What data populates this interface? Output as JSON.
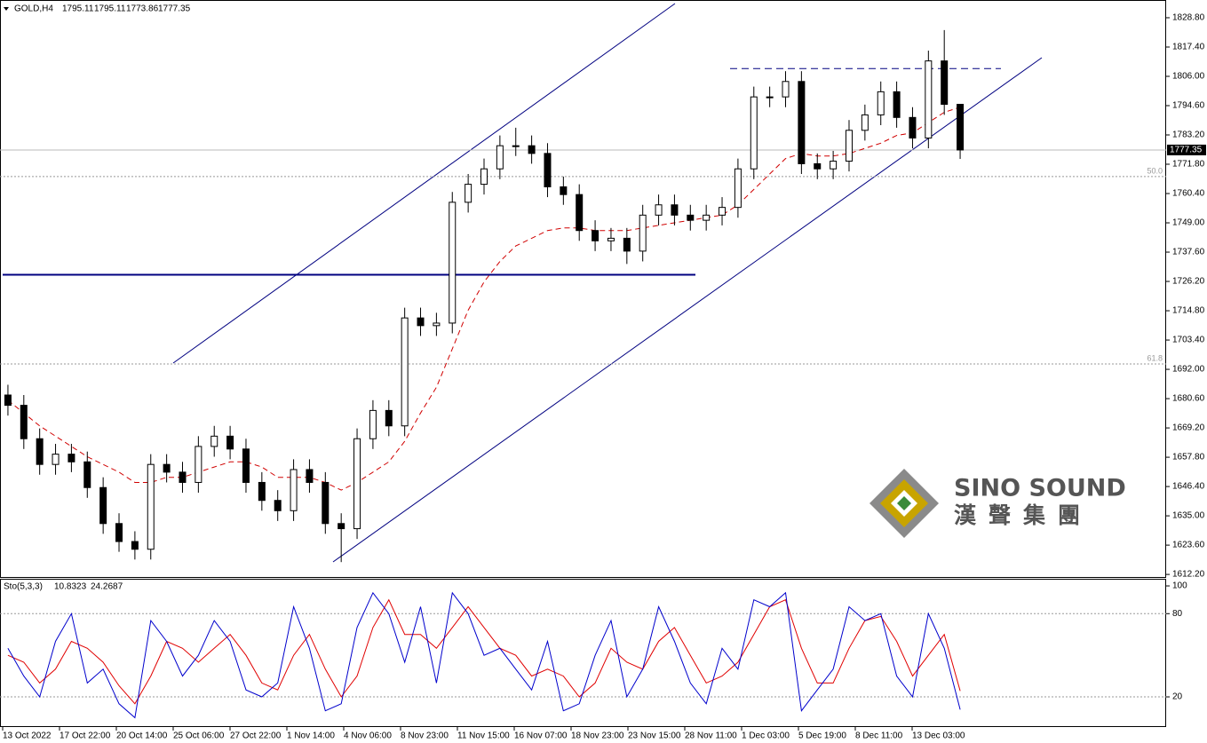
{
  "chart_data": {
    "type": "candlestick",
    "symbol": "GOLD,H4",
    "ohlc_header": [
      1795.11,
      1795.11,
      1773.86,
      1777.35
    ],
    "open": [
      1682,
      1678,
      1665,
      1655,
      1659,
      1656,
      1646,
      1632,
      1625,
      1622,
      1655,
      1652,
      1648,
      1662,
      1666,
      1661,
      1648,
      1641,
      1637,
      1653,
      1648,
      1632,
      1630,
      1665,
      1676,
      1670,
      1712,
      1709,
      1710,
      1757,
      1764,
      1770,
      1779,
      1779,
      1776,
      1763,
      1760,
      1746,
      1742,
      1743,
      1738,
      1752,
      1756,
      1752,
      1750,
      1752,
      1755,
      1770,
      1798,
      1798,
      1804,
      1772,
      1770,
      1773,
      1785,
      1791,
      1800,
      1790,
      1782,
      1812,
      1795.11
    ],
    "high": [
      1686,
      1682,
      1669,
      1663,
      1663,
      1660,
      1650,
      1636,
      1629,
      1659,
      1659,
      1656,
      1666,
      1670,
      1670,
      1665,
      1652,
      1645,
      1657,
      1657,
      1652,
      1636,
      1669,
      1680,
      1680,
      1716,
      1716,
      1714,
      1761,
      1768,
      1774,
      1783,
      1786,
      1783,
      1780,
      1767,
      1764,
      1750,
      1747,
      1747,
      1756,
      1760,
      1760,
      1756,
      1756,
      1759,
      1774,
      1802,
      1802,
      1808,
      1808,
      1776,
      1777,
      1789,
      1795,
      1804,
      1804,
      1794,
      1816,
      1824,
      1795.11
    ],
    "low": [
      1674,
      1661,
      1651,
      1651,
      1652,
      1642,
      1628,
      1621,
      1618,
      1618,
      1648,
      1644,
      1644,
      1658,
      1657,
      1644,
      1637,
      1633,
      1633,
      1644,
      1628,
      1617,
      1626,
      1661,
      1666,
      1666,
      1705,
      1705,
      1706,
      1753,
      1760,
      1766,
      1775,
      1772,
      1759,
      1756,
      1742,
      1738,
      1738,
      1733,
      1734,
      1748,
      1748,
      1746,
      1746,
      1748,
      1751,
      1766,
      1794,
      1794,
      1768,
      1766,
      1766,
      1769,
      1781,
      1787,
      1786,
      1778,
      1778,
      1791,
      1773.86
    ],
    "close": [
      1678,
      1665,
      1655,
      1659,
      1656,
      1646,
      1632,
      1625,
      1622,
      1655,
      1652,
      1648,
      1662,
      1666,
      1661,
      1648,
      1641,
      1637,
      1653,
      1648,
      1632,
      1630,
      1665,
      1676,
      1670,
      1712,
      1709,
      1710,
      1757,
      1764,
      1770,
      1779,
      1779,
      1776,
      1763,
      1760,
      1746,
      1742,
      1743,
      1738,
      1752,
      1756,
      1752,
      1750,
      1752,
      1755,
      1770,
      1798,
      1798,
      1804,
      1772,
      1770,
      1773,
      1785,
      1791,
      1800,
      1790,
      1782,
      1812,
      1795.11,
      1777.35
    ],
    "ma": [
      1680,
      1675,
      1670,
      1666,
      1662,
      1658,
      1655,
      1652,
      1648,
      1648,
      1650,
      1650,
      1652,
      1654,
      1656,
      1656,
      1654,
      1650,
      1650,
      1650,
      1648,
      1645,
      1648,
      1652,
      1656,
      1664,
      1675,
      1685,
      1700,
      1715,
      1726,
      1734,
      1740,
      1743,
      1746,
      1747,
      1747,
      1746,
      1746,
      1746,
      1747,
      1748,
      1749,
      1750,
      1751,
      1752,
      1756,
      1762,
      1768,
      1774,
      1776,
      1775,
      1775,
      1776,
      1778,
      1780,
      1783,
      1784,
      1788,
      1792,
      1794
    ],
    "ma_color": "#d00000",
    "ylim": [
      1611.2,
      1835.7
    ],
    "yticks": [
      {
        "value": 1828.8,
        "label": "1828.80"
      },
      {
        "value": 1817.4,
        "label": "1817.40"
      },
      {
        "value": 1806,
        "label": "1806.00"
      },
      {
        "value": 1794.6,
        "label": "1794.60"
      },
      {
        "value": 1783.2,
        "label": "1783.20"
      },
      {
        "value": 1771.8,
        "label": "1771.80"
      },
      {
        "value": 1760.4,
        "label": "1760.40"
      },
      {
        "value": 1749,
        "label": "1749.00"
      },
      {
        "value": 1737.6,
        "label": "1737.60"
      },
      {
        "value": 1726.2,
        "label": "1726.20"
      },
      {
        "value": 1714.8,
        "label": "1714.80"
      },
      {
        "value": 1703.4,
        "label": "1703.40"
      },
      {
        "value": 1692,
        "label": "1692.00"
      },
      {
        "value": 1680.6,
        "label": "1680.60"
      },
      {
        "value": 1669.2,
        "label": "1669.20"
      },
      {
        "value": 1657.8,
        "label": "1657.80"
      },
      {
        "value": 1646.4,
        "label": "1646.40"
      },
      {
        "value": 1635,
        "label": "1635.00"
      },
      {
        "value": 1623.6,
        "label": "1623.60"
      },
      {
        "value": 1612.2,
        "label": "1612.20"
      }
    ],
    "levels": [
      {
        "price": 1728.8,
        "style": "solid",
        "color": "#000080"
      },
      {
        "price": 1809,
        "style": "dashed",
        "color": "#000080"
      }
    ],
    "fib_levels": [
      {
        "price": 1767,
        "label": "50.0"
      },
      {
        "price": 1694.1,
        "label": "61.8"
      }
    ],
    "time_labels": [
      "13 Oct 2022",
      "17 Oct 22:00",
      "20 Oct 14:00",
      "25 Oct 06:00",
      "27 Oct 22:00",
      "1 Nov 14:00",
      "4 Nov 06:00",
      "8 Nov 23:00",
      "11 Nov 15:00",
      "16 Nov 07:00",
      "18 Nov 23:00",
      "23 Nov 15:00",
      "28 Nov 11:00",
      "1 Dec 03:00",
      "5 Dec 19:00",
      "8 Dec 11:00",
      "13 Dec 03:00"
    ],
    "indicator": {
      "name": "Sto(5,3,3)",
      "main": [
        55,
        35,
        20,
        60,
        80,
        30,
        40,
        15,
        5,
        75,
        60,
        35,
        50,
        75,
        60,
        25,
        20,
        30,
        85,
        55,
        10,
        15,
        70,
        95,
        80,
        45,
        85,
        30,
        95,
        80,
        50,
        55,
        40,
        25,
        60,
        10,
        15,
        50,
        75,
        20,
        40,
        85,
        60,
        30,
        15,
        55,
        40,
        90,
        85,
        95,
        10,
        25,
        40,
        85,
        75,
        80,
        35,
        20,
        80,
        55,
        10.8323
      ],
      "signal": [
        50,
        45,
        30,
        40,
        60,
        55,
        45,
        28,
        15,
        35,
        60,
        55,
        45,
        55,
        65,
        50,
        30,
        25,
        50,
        65,
        40,
        20,
        35,
        70,
        90,
        65,
        65,
        55,
        70,
        85,
        70,
        55,
        50,
        35,
        40,
        35,
        20,
        30,
        55,
        45,
        40,
        60,
        70,
        50,
        30,
        35,
        45,
        65,
        85,
        90,
        55,
        30,
        30,
        55,
        75,
        78,
        60,
        35,
        50,
        65,
        24.2687
      ],
      "main_color": "#0000cc",
      "signal_color": "#e00000",
      "ylim": [
        -1.1,
        104.5
      ],
      "yticks": [
        100,
        80,
        20
      ],
      "levels": [
        80,
        20
      ]
    },
    "watermark": {
      "brand": "SINO SOUND",
      "chinese": "漢聲集團"
    }
  }
}
